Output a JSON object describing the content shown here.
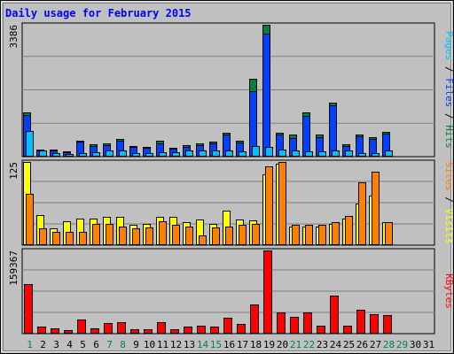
{
  "chart_data": {
    "type": "bar",
    "title": "Daily usage for February 2015",
    "days": [
      "1",
      "2",
      "3",
      "4",
      "5",
      "6",
      "7",
      "8",
      "9",
      "10",
      "11",
      "12",
      "13",
      "14",
      "15",
      "16",
      "17",
      "18",
      "19",
      "20",
      "21",
      "22",
      "23",
      "24",
      "25",
      "26",
      "27",
      "28",
      "29",
      "30",
      "31"
    ],
    "weekend_days": [
      "1",
      "7",
      "8",
      "14",
      "15",
      "21",
      "22",
      "28",
      "29"
    ],
    "panels": [
      {
        "id": "top",
        "ymax_label": "3386",
        "ymax": 3386,
        "right_label": [
          "Pages",
          "Files",
          "Hits"
        ],
        "series": [
          {
            "name": "Hits",
            "color": "#008040",
            "values": [
              1130,
              190,
              190,
              130,
              420,
              320,
              330,
              450,
              280,
              260,
              400,
              230,
              290,
              340,
              380,
              620,
              420,
              1990,
              3386,
              620,
              570,
              1130,
              560,
              1390,
              320,
              560,
              500,
              630,
              0,
              0,
              0
            ]
          },
          {
            "name": "Files",
            "color": "#0040ff",
            "values": [
              1060,
              170,
              160,
              110,
              380,
              270,
              290,
              410,
              250,
              230,
              350,
              200,
              250,
              290,
              330,
              560,
              360,
              1680,
              3150,
              560,
              480,
              1040,
              500,
              1320,
              280,
              520,
              460,
              580,
              0,
              0,
              0
            ]
          },
          {
            "name": "Pages",
            "color": "#00c0ff",
            "values": [
              660,
              150,
              100,
              70,
              100,
              120,
              160,
              160,
              100,
              100,
              120,
              120,
              150,
              150,
              150,
              160,
              140,
              280,
              240,
              180,
              150,
              140,
              140,
              150,
              150,
              100,
              90,
              150,
              0,
              0,
              0
            ]
          }
        ]
      },
      {
        "id": "middle",
        "ymax_label": "125",
        "ymax": 125,
        "right_label": [
          "Sites",
          "Visits"
        ],
        "series": [
          {
            "name": "Visits",
            "color": "#ffff00",
            "values": [
              125,
              45,
              25,
              36,
              40,
              40,
              42,
              42,
              30,
              32,
              42,
              42,
              35,
              39,
              32,
              52,
              38,
              37,
              106,
              122,
              28,
              28,
              28,
              32,
              40,
              62,
              75,
              34,
              0,
              0,
              0
            ]
          },
          {
            "name": "Sites",
            "color": "#ff8000",
            "values": [
              77,
              25,
              20,
              20,
              20,
              32,
              32,
              28,
              25,
              26,
              36,
              30,
              28,
              15,
              26,
              28,
              30,
              32,
              118,
              125,
              30,
              30,
              30,
              34,
              44,
              94,
              110,
              35,
              0,
              0,
              0
            ]
          }
        ]
      },
      {
        "id": "bottom",
        "ymax_label": "159367",
        "ymax": 159367,
        "right_label": [
          "KBytes"
        ],
        "series": [
          {
            "name": "KBytes",
            "color": "#ff0000",
            "values": [
              95000,
              14000,
              10000,
              7000,
              27000,
              10000,
              20000,
              22000,
              9000,
              9000,
              22000,
              9000,
              14000,
              15000,
              14000,
              30000,
              18000,
              56000,
              159367,
              40000,
              33000,
              40000,
              16000,
              73000,
              16000,
              46000,
              37000,
              35000,
              0,
              0,
              0
            ]
          }
        ]
      }
    ]
  }
}
